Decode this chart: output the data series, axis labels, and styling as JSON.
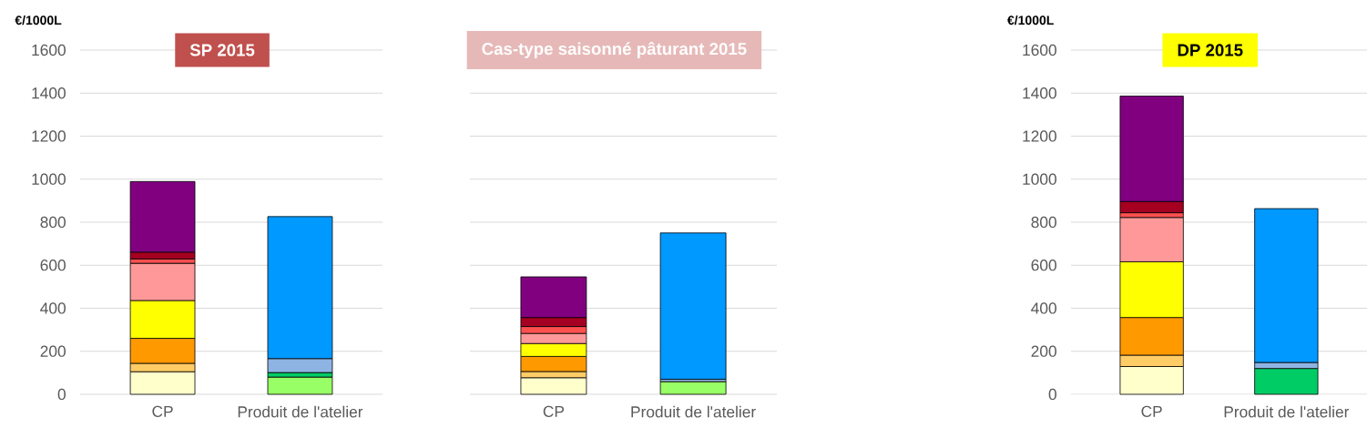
{
  "chart_data": [
    {
      "type": "bar",
      "title": "SP 2015",
      "ylabel": "€/1000L",
      "categories": [
        "CP",
        "Produit de l'atelier"
      ],
      "stacked": true,
      "grid": "y",
      "ylim": [
        0,
        1600
      ],
      "yticks": [
        0,
        200,
        400,
        600,
        800,
        1000,
        1200,
        1400,
        1600
      ],
      "series": [
        {
          "color": "#ffffcc",
          "values": [
            105,
            null
          ]
        },
        {
          "color": "#ffcc66",
          "values": [
            39,
            null
          ]
        },
        {
          "color": "#ff9900",
          "values": [
            116,
            null
          ]
        },
        {
          "color": "#ffff00",
          "values": [
            176,
            null
          ]
        },
        {
          "color": "#ff9999",
          "values": [
            173,
            null
          ]
        },
        {
          "color": "#ff5050",
          "values": [
            20,
            null
          ]
        },
        {
          "color": "#a50021",
          "values": [
            32,
            null
          ]
        },
        {
          "color": "#800080",
          "values": [
            328,
            null
          ]
        },
        {
          "color": "#99ff66",
          "values": [
            null,
            80
          ]
        },
        {
          "color": "#00cc66",
          "values": [
            null,
            21
          ]
        },
        {
          "color": "#8eb4e3",
          "values": [
            null,
            65
          ]
        },
        {
          "color": "#0099ff",
          "values": [
            null,
            660
          ]
        }
      ]
    },
    {
      "type": "bar",
      "title": "Cas-type saisonné pâturant 2015",
      "categories": [
        "CP",
        "Produit de l'atelier"
      ],
      "stacked": true,
      "grid": "y",
      "tick_labels": "x",
      "ylim": [
        0,
        1600
      ],
      "yticks": [
        0,
        200,
        400,
        600,
        800,
        1000,
        1200,
        1400,
        1600
      ],
      "series": [
        {
          "color": "#ffffcc",
          "values": [
            77,
            null
          ]
        },
        {
          "color": "#ffcc66",
          "values": [
            29,
            null
          ]
        },
        {
          "color": "#ff9900",
          "values": [
            70,
            null
          ]
        },
        {
          "color": "#ffff00",
          "values": [
            60,
            null
          ]
        },
        {
          "color": "#ff9999",
          "values": [
            47,
            null
          ]
        },
        {
          "color": "#ff5050",
          "values": [
            32,
            null
          ]
        },
        {
          "color": "#a50021",
          "values": [
            42,
            null
          ]
        },
        {
          "color": "#800080",
          "values": [
            189,
            null
          ]
        },
        {
          "color": "#99ff66",
          "values": [
            null,
            59
          ]
        },
        {
          "color": "#8eb4e3",
          "values": [
            null,
            11
          ]
        },
        {
          "color": "#0099ff",
          "values": [
            null,
            680
          ]
        }
      ]
    },
    {
      "type": "bar",
      "title": "DP 2015",
      "ylabel": "€/1000L",
      "categories": [
        "CP",
        "Produit de l'atelier"
      ],
      "stacked": true,
      "grid": "y",
      "ylim": [
        0,
        1600
      ],
      "yticks": [
        0,
        200,
        400,
        600,
        800,
        1000,
        1200,
        1400,
        1600
      ],
      "series": [
        {
          "color": "#ffffcc",
          "values": [
            129,
            null
          ]
        },
        {
          "color": "#ffcc66",
          "values": [
            53,
            null
          ]
        },
        {
          "color": "#ff9900",
          "values": [
            175,
            null
          ]
        },
        {
          "color": "#ffff00",
          "values": [
            259,
            null
          ]
        },
        {
          "color": "#ff9999",
          "values": [
            206,
            null
          ]
        },
        {
          "color": "#ff5050",
          "values": [
            22,
            null
          ]
        },
        {
          "color": "#a50021",
          "values": [
            52,
            null
          ]
        },
        {
          "color": "#800080",
          "values": [
            490,
            null
          ]
        },
        {
          "color": "#00cc66",
          "values": [
            null,
            120
          ]
        },
        {
          "color": "#8eb4e3",
          "values": [
            null,
            28
          ]
        },
        {
          "color": "#0099ff",
          "values": [
            null,
            715
          ]
        }
      ]
    }
  ]
}
